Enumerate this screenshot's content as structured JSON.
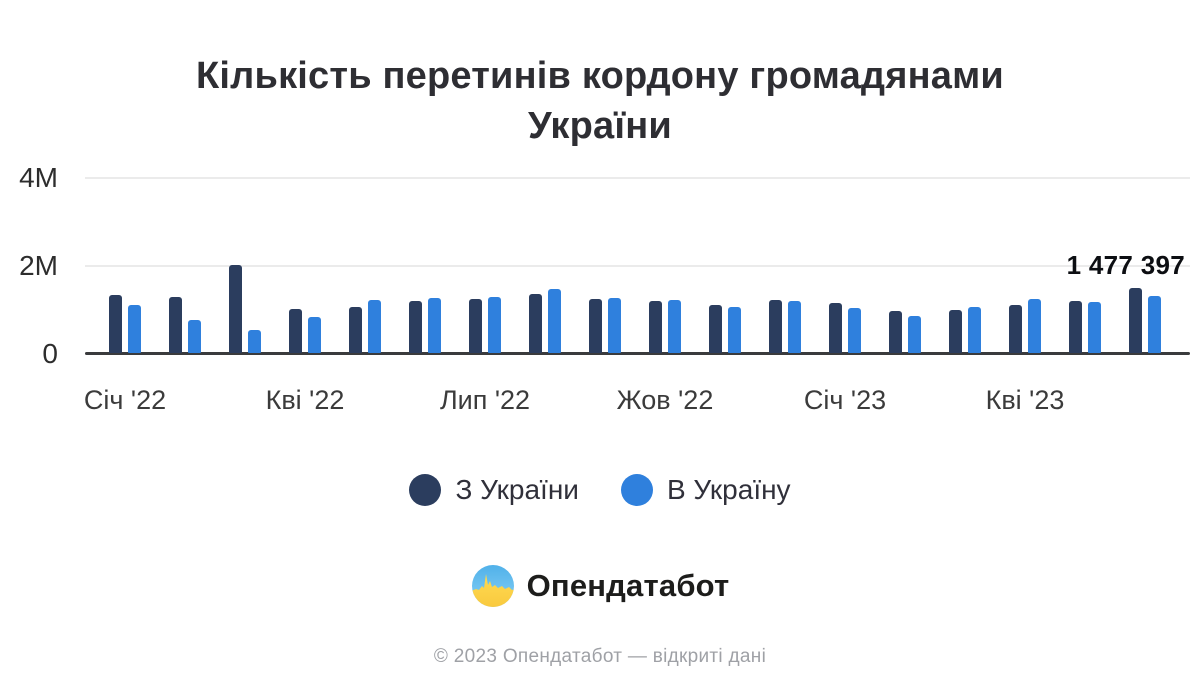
{
  "title": "Кількість перетинів кордону громадянами України",
  "title_lines": [
    "Кількість перетинів кордону громадянами",
    "України"
  ],
  "colors": {
    "from_ukraine": "#2b3d5e",
    "to_ukraine": "#2f80dd",
    "grid": "#ebebeb",
    "axis": "#3a3b3d",
    "logo_blue": "#55b4ec",
    "logo_yellow": "#ffd94a"
  },
  "chart_data": {
    "type": "bar",
    "title": "Кількість перетинів кордону громадянами України",
    "n_groups": 18,
    "x_tick_labels": [
      {
        "index": 0,
        "label": "Січ '22"
      },
      {
        "index": 3,
        "label": "Кві '22"
      },
      {
        "index": 6,
        "label": "Лип '22"
      },
      {
        "index": 9,
        "label": "Жов '22"
      },
      {
        "index": 12,
        "label": "Січ '23"
      },
      {
        "index": 15,
        "label": "Кві '23"
      }
    ],
    "yticks": [
      "0",
      "2M",
      "4M"
    ],
    "ylim": [
      0,
      4000000
    ],
    "grid": true,
    "legend_position": "bottom",
    "unit": "crossings per month",
    "series": [
      {
        "name": "З України",
        "color": "#2b3d5e",
        "values_millions": [
          1.32,
          1.28,
          2.01,
          1.01,
          1.05,
          1.19,
          1.23,
          1.35,
          1.23,
          1.19,
          1.1,
          1.2,
          1.14,
          0.95,
          0.98,
          1.08,
          1.18,
          1.477397
        ]
      },
      {
        "name": "В Україну",
        "color": "#2f80dd",
        "values_millions": [
          1.1,
          0.75,
          0.52,
          0.82,
          1.2,
          1.24,
          1.28,
          1.45,
          1.24,
          1.2,
          1.05,
          1.18,
          1.02,
          0.84,
          1.04,
          1.22,
          1.15,
          1.3
        ]
      }
    ],
    "annotation": {
      "text": "1 477 397",
      "series": "З України",
      "group_index": 17
    }
  },
  "legend": {
    "items": [
      {
        "label": "З України",
        "color": "#2b3d5e"
      },
      {
        "label": "В Україну",
        "color": "#2f80dd"
      }
    ]
  },
  "logo": {
    "text": "Опендатабот"
  },
  "footer": "© 2023 Опендатабот — відкриті дані"
}
